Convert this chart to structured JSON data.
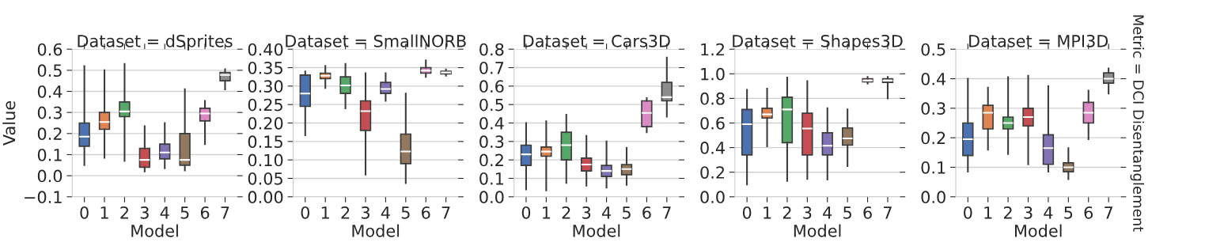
{
  "chart_data": [
    {
      "type": "box",
      "title": "Dataset = dSprites",
      "xlabel": "Model",
      "ylabel": "Value",
      "categories": [
        "0",
        "1",
        "2",
        "3",
        "4",
        "5",
        "6",
        "7"
      ],
      "colors": [
        "#4c72b0",
        "#dd8452",
        "#55a868",
        "#c44e52",
        "#8172b3",
        "#937860",
        "#da8bc3",
        "#8c8c8c"
      ],
      "grid": "y",
      "ylim": [
        -0.1,
        0.6
      ],
      "yticks": [
        {
          "value": -0.1,
          "label": "−0.1"
        },
        {
          "value": 0.0,
          "label": "0.0"
        },
        0.1,
        0.2,
        0.3,
        0.4,
        0.5,
        0.6
      ],
      "boxes": [
        {
          "low": 0.05,
          "q1": 0.14,
          "median": 0.185,
          "q3": 0.25,
          "high": 0.52
        },
        {
          "low": 0.085,
          "q1": 0.22,
          "median": 0.255,
          "q3": 0.3,
          "high": 0.5
        },
        {
          "low": 0.07,
          "q1": 0.28,
          "median": 0.305,
          "q3": 0.35,
          "high": 0.53
        },
        {
          "low": 0.02,
          "q1": 0.04,
          "median": 0.075,
          "q3": 0.13,
          "high": 0.235
        },
        {
          "low": 0.035,
          "q1": 0.08,
          "median": 0.11,
          "q3": 0.15,
          "high": 0.25
        },
        {
          "low": 0.025,
          "q1": 0.05,
          "median": 0.075,
          "q3": 0.2,
          "high": 0.41
        },
        {
          "low": 0.15,
          "q1": 0.26,
          "median": 0.295,
          "q3": 0.32,
          "high": 0.355
        },
        {
          "low": 0.41,
          "q1": 0.45,
          "median": 0.478,
          "q3": 0.49,
          "high": 0.505
        }
      ]
    },
    {
      "type": "box",
      "title": "Dataset = SmallNORB",
      "xlabel": "Model",
      "categories": [
        "0",
        "1",
        "2",
        "3",
        "4",
        "5",
        "6",
        "7"
      ],
      "colors": [
        "#4c72b0",
        "#dd8452",
        "#55a868",
        "#c44e52",
        "#8172b3",
        "#937860",
        "#da8bc3",
        "#8c8c8c"
      ],
      "grid": "y",
      "ylim": [
        0.0,
        0.4
      ],
      "yticks": [
        {
          "value": 0.0,
          "label": "0.00"
        },
        0.05,
        {
          "value": 0.1,
          "label": "0.10"
        },
        0.15,
        {
          "value": 0.2,
          "label": "0.20"
        },
        0.25,
        {
          "value": 0.3,
          "label": "0.30"
        },
        0.35,
        {
          "value": 0.4,
          "label": "0.40"
        }
      ],
      "boxes": [
        {
          "low": 0.167,
          "q1": 0.245,
          "median": 0.28,
          "q3": 0.33,
          "high": 0.34
        },
        {
          "low": 0.295,
          "q1": 0.32,
          "median": 0.328,
          "q3": 0.335,
          "high": 0.355
        },
        {
          "low": 0.24,
          "q1": 0.28,
          "median": 0.302,
          "q3": 0.325,
          "high": 0.36
        },
        {
          "low": 0.06,
          "q1": 0.18,
          "median": 0.232,
          "q3": 0.26,
          "high": 0.335
        },
        {
          "low": 0.26,
          "q1": 0.28,
          "median": 0.292,
          "q3": 0.31,
          "high": 0.335
        },
        {
          "low": 0.037,
          "q1": 0.09,
          "median": 0.123,
          "q3": 0.17,
          "high": 0.28
        },
        {
          "low": 0.325,
          "q1": 0.335,
          "median": 0.342,
          "q3": 0.35,
          "high": 0.37
        },
        {
          "low": 0.328,
          "q1": 0.333,
          "median": 0.337,
          "q3": 0.34,
          "high": 0.345
        }
      ]
    },
    {
      "type": "box",
      "title": "Dataset = Cars3D",
      "xlabel": "Model",
      "categories": [
        "0",
        "1",
        "2",
        "3",
        "4",
        "5",
        "6",
        "7"
      ],
      "colors": [
        "#4c72b0",
        "#dd8452",
        "#55a868",
        "#c44e52",
        "#8172b3",
        "#937860",
        "#da8bc3",
        "#8c8c8c"
      ],
      "grid": "y",
      "ylim": [
        0.0,
        0.8
      ],
      "yticks": [
        {
          "value": 0.0,
          "label": "0.0"
        },
        0.1,
        0.2,
        0.3,
        0.4,
        0.5,
        0.6,
        0.7,
        0.8
      ],
      "boxes": [
        {
          "low": 0.04,
          "q1": 0.17,
          "median": 0.23,
          "q3": 0.28,
          "high": 0.4
        },
        {
          "low": 0.035,
          "q1": 0.22,
          "median": 0.245,
          "q3": 0.27,
          "high": 0.41
        },
        {
          "low": 0.075,
          "q1": 0.2,
          "median": 0.28,
          "q3": 0.35,
          "high": 0.445
        },
        {
          "low": 0.06,
          "q1": 0.14,
          "median": 0.175,
          "q3": 0.21,
          "high": 0.33
        },
        {
          "low": 0.05,
          "q1": 0.11,
          "median": 0.14,
          "q3": 0.17,
          "high": 0.3
        },
        {
          "low": 0.065,
          "q1": 0.12,
          "median": 0.15,
          "q3": 0.175,
          "high": 0.265
        },
        {
          "low": 0.35,
          "q1": 0.38,
          "median": 0.455,
          "q3": 0.52,
          "high": 0.535
        },
        {
          "low": 0.435,
          "q1": 0.52,
          "median": 0.54,
          "q3": 0.62,
          "high": 0.755
        }
      ]
    },
    {
      "type": "box",
      "title": "Dataset = Shapes3D",
      "xlabel": "Model",
      "categories": [
        "0",
        "1",
        "2",
        "3",
        "4",
        "5",
        "6",
        "7"
      ],
      "colors": [
        "#4c72b0",
        "#dd8452",
        "#55a868",
        "#c44e52",
        "#8172b3",
        "#937860",
        "#da8bc3",
        "#8c8c8c"
      ],
      "grid": "y",
      "ylim": [
        0.0,
        1.2
      ],
      "yticks": [
        {
          "value": 0.0,
          "label": "0.0"
        },
        0.2,
        0.4,
        0.6,
        0.8,
        {
          "value": 1.0,
          "label": "1.0"
        },
        1.2
      ],
      "boxes": [
        {
          "low": 0.1,
          "q1": 0.34,
          "median": 0.59,
          "q3": 0.71,
          "high": 0.87
        },
        {
          "low": 0.41,
          "q1": 0.64,
          "median": 0.67,
          "q3": 0.72,
          "high": 0.88
        },
        {
          "low": 0.13,
          "q1": 0.44,
          "median": 0.71,
          "q3": 0.81,
          "high": 0.97
        },
        {
          "low": 0.145,
          "q1": 0.34,
          "median": 0.555,
          "q3": 0.68,
          "high": 0.94
        },
        {
          "low": 0.14,
          "q1": 0.34,
          "median": 0.415,
          "q3": 0.52,
          "high": 0.72
        },
        {
          "low": 0.25,
          "q1": 0.42,
          "median": 0.475,
          "q3": 0.56,
          "high": 0.71
        },
        {
          "low": 0.92,
          "q1": 0.935,
          "median": 0.945,
          "q3": 0.96,
          "high": 0.975
        },
        {
          "low": 0.8,
          "q1": 0.93,
          "median": 0.945,
          "q3": 0.96,
          "high": 0.975
        }
      ]
    },
    {
      "type": "box",
      "title": "Dataset = MPI3D",
      "xlabel": "Model",
      "categories": [
        "0",
        "1",
        "2",
        "3",
        "4",
        "5",
        "6",
        "7"
      ],
      "colors": [
        "#4c72b0",
        "#dd8452",
        "#55a868",
        "#c44e52",
        "#8172b3",
        "#937860",
        "#da8bc3",
        "#8c8c8c"
      ],
      "grid": "y",
      "ylim": [
        0.0,
        0.5
      ],
      "yticks": [
        {
          "value": 0.0,
          "label": "0.0"
        },
        0.1,
        0.2,
        0.3,
        0.4,
        0.5
      ],
      "annotations": [
        "Metric = DCI Disentanglement"
      ],
      "boxes": [
        {
          "low": 0.085,
          "q1": 0.14,
          "median": 0.195,
          "q3": 0.25,
          "high": 0.4
        },
        {
          "low": 0.16,
          "q1": 0.23,
          "median": 0.285,
          "q3": 0.31,
          "high": 0.37
        },
        {
          "low": 0.145,
          "q1": 0.23,
          "median": 0.25,
          "q3": 0.27,
          "high": 0.405
        },
        {
          "low": 0.11,
          "q1": 0.24,
          "median": 0.27,
          "q3": 0.3,
          "high": 0.41
        },
        {
          "low": 0.085,
          "q1": 0.11,
          "median": 0.165,
          "q3": 0.21,
          "high": 0.375
        },
        {
          "low": 0.06,
          "q1": 0.085,
          "median": 0.1,
          "q3": 0.115,
          "high": 0.165
        },
        {
          "low": 0.195,
          "q1": 0.25,
          "median": 0.285,
          "q3": 0.32,
          "high": 0.36
        },
        {
          "low": 0.35,
          "q1": 0.385,
          "median": 0.4,
          "q3": 0.42,
          "high": 0.435
        }
      ]
    }
  ]
}
